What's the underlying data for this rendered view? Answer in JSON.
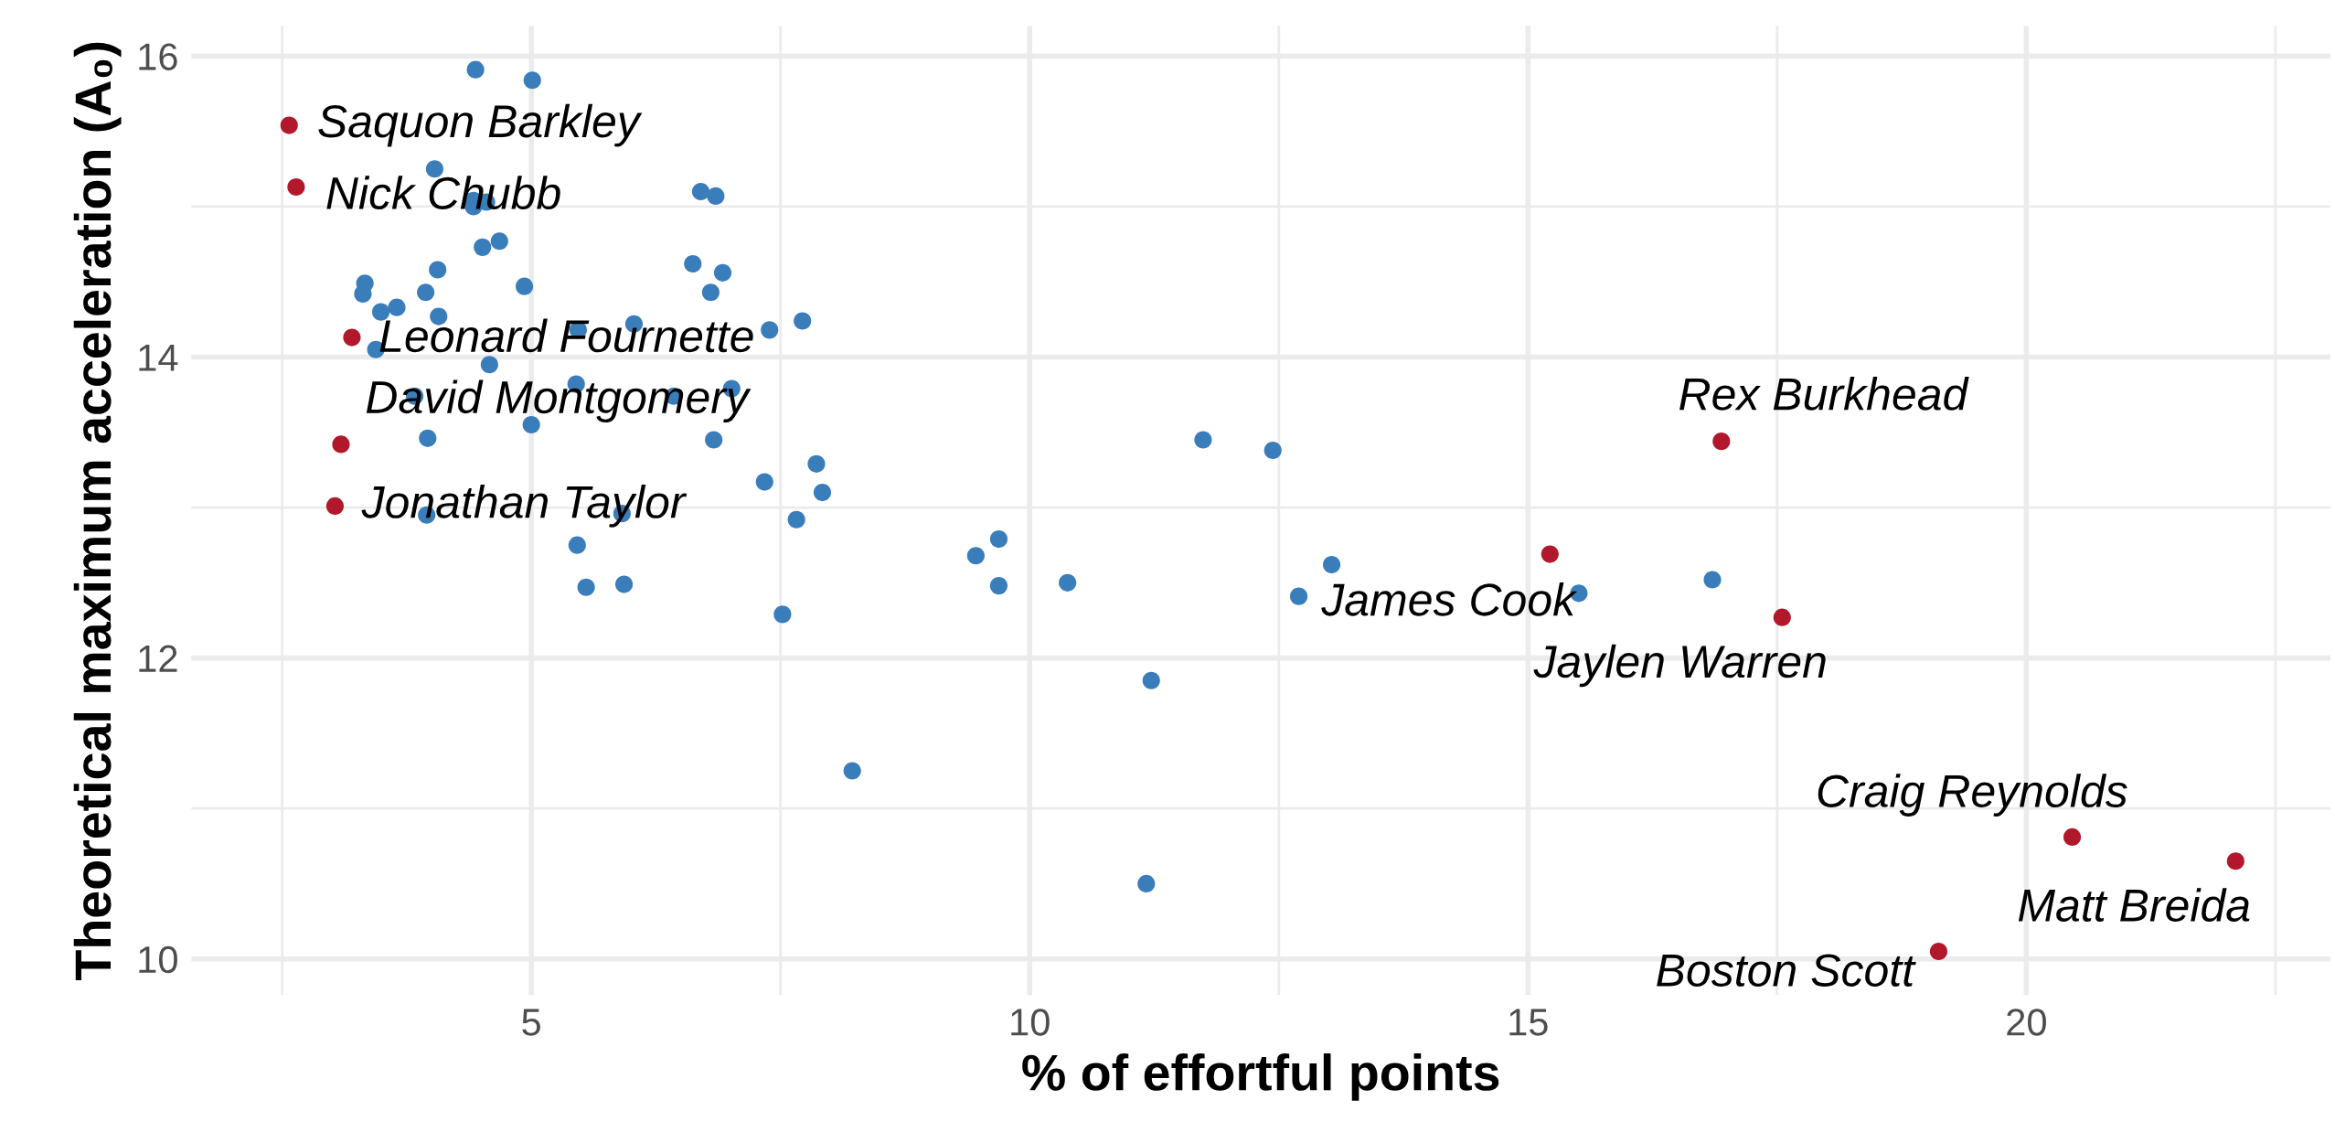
{
  "chart_data": {
    "type": "scatter",
    "xlabel": "% of effortful points",
    "ylabel": "Theoretical maximum acceleration (A₀)",
    "xlim": [
      1.59,
      23.05
    ],
    "ylim": [
      9.76,
      16.2
    ],
    "xticks": [
      {
        "value": 2.5,
        "label": null
      },
      5,
      {
        "value": 7.5,
        "label": null
      },
      10,
      {
        "value": 12.5,
        "label": null
      },
      15,
      {
        "value": 17.5,
        "label": null
      },
      20,
      {
        "value": 22.5,
        "label": null
      }
    ],
    "yticks": [
      10,
      {
        "value": 11,
        "label": null
      },
      12,
      {
        "value": 13,
        "label": null
      },
      14,
      {
        "value": 15,
        "label": null
      },
      16
    ],
    "grid": true,
    "marker": "circle",
    "series": [
      {
        "color": "#3a7dbb",
        "x": [
          4.44,
          5.01,
          4.03,
          4.42,
          4.55,
          4.42,
          6.7,
          6.85,
          4.51,
          4.68,
          6.62,
          6.92,
          6.8,
          4.06,
          3.33,
          3.31,
          3.94,
          4.93,
          3.49,
          3.65,
          4.07,
          5.47,
          6.03,
          7.39,
          7.72,
          3.44,
          4.58,
          5.45,
          6.43,
          7.01,
          3.83,
          5.0,
          3.96,
          6.83,
          7.86,
          7.34,
          7.92,
          3.95,
          5.91,
          7.66,
          5.46,
          5.55,
          5.93,
          7.52,
          9.46,
          9.69,
          9.69,
          10.38,
          11.22,
          8.22,
          11.17,
          11.74,
          12.44,
          13.03,
          12.7,
          15.51,
          16.85
        ],
        "values": [
          15.91,
          15.84,
          15.25,
          15.04,
          15.03,
          15.0,
          15.1,
          15.07,
          14.73,
          14.77,
          14.62,
          14.56,
          14.43,
          14.58,
          14.49,
          14.42,
          14.43,
          14.47,
          14.3,
          14.33,
          14.27,
          14.18,
          14.22,
          14.18,
          14.24,
          14.05,
          13.95,
          13.82,
          13.74,
          13.79,
          13.74,
          13.55,
          13.46,
          13.45,
          13.29,
          13.17,
          13.1,
          12.95,
          12.96,
          12.92,
          12.75,
          12.47,
          12.49,
          12.29,
          12.68,
          12.79,
          12.48,
          12.5,
          11.85,
          11.25,
          10.5,
          13.45,
          13.38,
          12.62,
          12.41,
          12.43,
          12.52
        ]
      },
      {
        "color": "#b2182b",
        "x": [
          2.57,
          2.64,
          3.2,
          3.09,
          3.03,
          15.22,
          16.94,
          17.55,
          20.46,
          22.1,
          19.12
        ],
        "values": [
          15.54,
          15.13,
          14.13,
          13.42,
          13.01,
          12.69,
          13.44,
          12.27,
          10.81,
          10.65,
          10.05
        ]
      }
    ],
    "annotations": [
      {
        "text": "Saquon Barkley",
        "x": 2.57,
        "y": 15.54
      },
      {
        "text": "Nick Chubb",
        "x": 2.64,
        "y": 15.13
      },
      {
        "text": "Leonard Fournette",
        "x": 3.2,
        "y": 14.13
      },
      {
        "text": "David Montgomery",
        "x": 3.09,
        "y": 13.42
      },
      {
        "text": "Jonathan Taylor",
        "x": 3.03,
        "y": 13.01
      },
      {
        "text": "James Cook",
        "x": 15.22,
        "y": 12.69
      },
      {
        "text": "Rex Burkhead",
        "x": 16.94,
        "y": 13.44
      },
      {
        "text": "Jaylen Warren",
        "x": 17.55,
        "y": 12.27
      },
      {
        "text": "Craig Reynolds",
        "x": 20.46,
        "y": 10.81
      },
      {
        "text": "Matt Breida",
        "x": 22.1,
        "y": 10.65
      },
      {
        "text": "Boston Scott",
        "x": 19.12,
        "y": 10.05
      }
    ]
  }
}
